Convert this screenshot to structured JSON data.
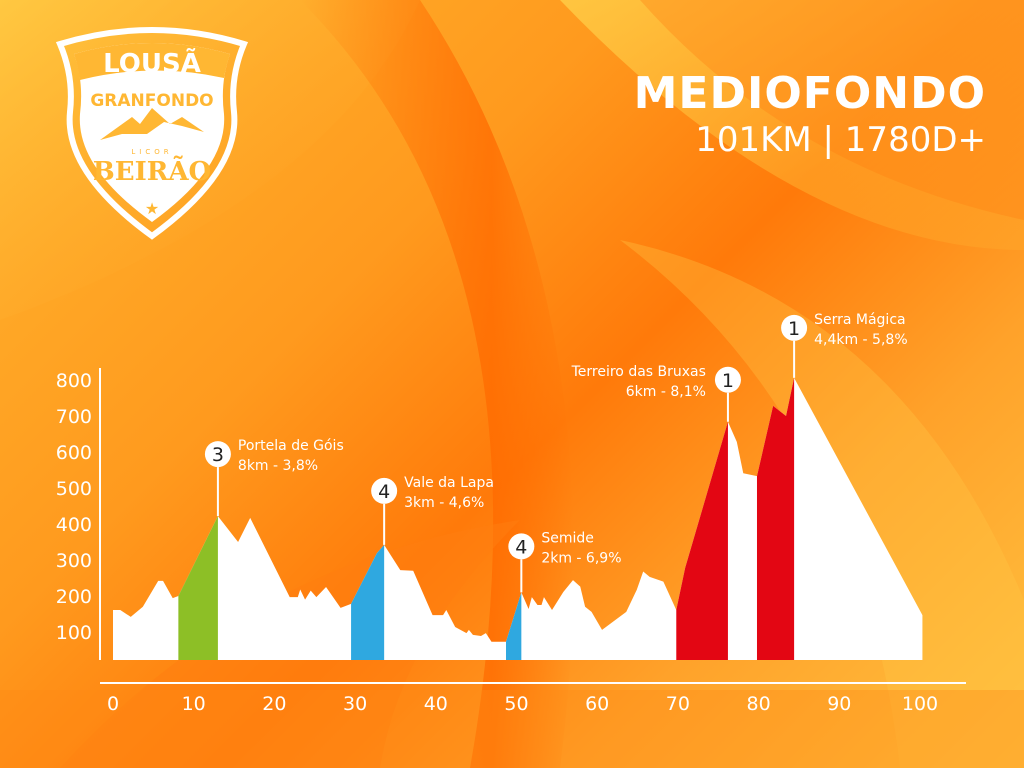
{
  "logo": {
    "line1": "LOUSÃ",
    "line2": "GRANFONDO",
    "sponsor_small": "LICOR",
    "sponsor": "BEIRÃO"
  },
  "header": {
    "title": "MEDIOFONDO",
    "subtitle": "101KM | 1780D+"
  },
  "colors": {
    "profile": "#ffffff",
    "cat1": "#e30613",
    "cat3": "#8dbf26",
    "cat4": "#2fa8e0",
    "axis": "#ffffff"
  },
  "chart_data": {
    "type": "area",
    "title": "",
    "xlabel": "",
    "ylabel": "",
    "xlim": [
      0,
      101
    ],
    "ylim": [
      20,
      820
    ],
    "x_ticks": [
      "0",
      "10",
      "20",
      "30",
      "40",
      "50",
      "60",
      "70",
      "80",
      "90",
      "100"
    ],
    "y_ticks": [
      "100",
      "200",
      "300",
      "400",
      "500",
      "600",
      "700",
      "800"
    ],
    "grid": false,
    "profile": [
      [
        0,
        161
      ],
      [
        0.9,
        161
      ],
      [
        2.2,
        142
      ],
      [
        3.7,
        170
      ],
      [
        5.6,
        242
      ],
      [
        6.2,
        242
      ],
      [
        7.4,
        194
      ],
      [
        8.1,
        200
      ],
      [
        13,
        422
      ],
      [
        15.5,
        350
      ],
      [
        17,
        417
      ],
      [
        21.9,
        197
      ],
      [
        22.9,
        197
      ],
      [
        23.2,
        218
      ],
      [
        23.8,
        190
      ],
      [
        24.5,
        215
      ],
      [
        25.2,
        197
      ],
      [
        26.4,
        225
      ],
      [
        28.2,
        167
      ],
      [
        29.5,
        178
      ],
      [
        32.7,
        319
      ],
      [
        33.6,
        342
      ],
      [
        35.6,
        272
      ],
      [
        37.2,
        270
      ],
      [
        39.6,
        147
      ],
      [
        40.9,
        147
      ],
      [
        41.3,
        161
      ],
      [
        42.4,
        114
      ],
      [
        43.8,
        97
      ],
      [
        44.1,
        106
      ],
      [
        44.6,
        92
      ],
      [
        45.6,
        89
      ],
      [
        46.2,
        97
      ],
      [
        46.9,
        73
      ],
      [
        48.7,
        73
      ],
      [
        50.6,
        210
      ],
      [
        51.5,
        164
      ],
      [
        51.9,
        197
      ],
      [
        52.6,
        175
      ],
      [
        53.1,
        175
      ],
      [
        53.4,
        197
      ],
      [
        54.4,
        161
      ],
      [
        55.8,
        211
      ],
      [
        57,
        244
      ],
      [
        57.9,
        226
      ],
      [
        58.5,
        170
      ],
      [
        59.3,
        156
      ],
      [
        60.6,
        106
      ],
      [
        63.6,
        156
      ],
      [
        64.9,
        217
      ],
      [
        65.7,
        268
      ],
      [
        66.5,
        253
      ],
      [
        68.2,
        240
      ],
      [
        69.8,
        161
      ],
      [
        70.9,
        278
      ],
      [
        76.2,
        684
      ],
      [
        77.3,
        628
      ],
      [
        78.1,
        541
      ],
      [
        79.8,
        533
      ],
      [
        81.8,
        728
      ],
      [
        83.4,
        700
      ],
      [
        84.4,
        806
      ],
      [
        100.3,
        147
      ]
    ],
    "climbs": [
      {
        "name": "Portela de Góis",
        "detail": "8km - 3,8%",
        "category": "3",
        "start_km": 8.1,
        "end_km": 13,
        "color": "#8dbf26"
      },
      {
        "name": "Vale da Lapa",
        "detail": "3km - 4,6%",
        "category": "4",
        "start_km": 29.5,
        "end_km": 33.6,
        "color": "#2fa8e0"
      },
      {
        "name": "Semide",
        "detail": "2km - 6,9%",
        "category": "4",
        "start_km": 48.7,
        "end_km": 50.6,
        "color": "#2fa8e0"
      },
      {
        "name": "Terreiro das Bruxas",
        "detail": "6km - 8,1%",
        "category": "1",
        "start_km": 69.8,
        "end_km": 76.2,
        "color": "#e30613"
      },
      {
        "name": "Serra Mágica",
        "detail": "4,4km - 5,8%",
        "category": "1",
        "start_km": 79.8,
        "end_km": 84.4,
        "color": "#e30613"
      }
    ]
  }
}
